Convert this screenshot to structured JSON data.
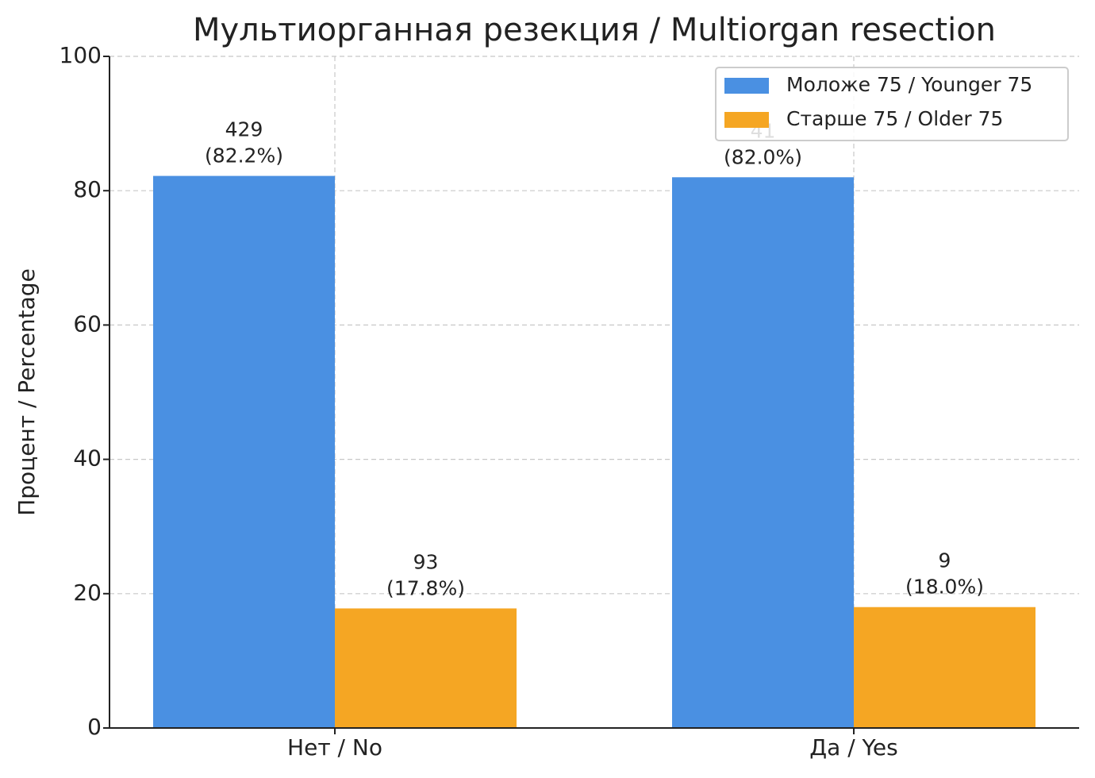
{
  "chart_data": {
    "type": "bar",
    "title": "Мультиорганная резекция / Multiorgan resection",
    "y_label": "Процент / Percentage",
    "categories": [
      "Нет / No",
      "Да / Yes"
    ],
    "series": [
      {
        "name": "Моложе 75 / Younger 75",
        "color": "#4a90e2",
        "values": [
          82.2,
          82.0
        ],
        "value_labels": [
          [
            "429",
            "(82.2%)"
          ],
          [
            "41",
            "(82.0%)"
          ]
        ]
      },
      {
        "name": "Старше 75 / Older 75",
        "color": "#f5a623",
        "values": [
          17.8,
          18.0
        ],
        "value_labels": [
          [
            "93",
            "(17.8%)"
          ],
          [
            "9",
            "(18.0%)"
          ]
        ]
      }
    ],
    "ylim": [
      0,
      100
    ],
    "yticks": [
      0,
      20,
      40,
      60,
      80,
      100
    ],
    "grid": true,
    "legend": "upper right"
  }
}
